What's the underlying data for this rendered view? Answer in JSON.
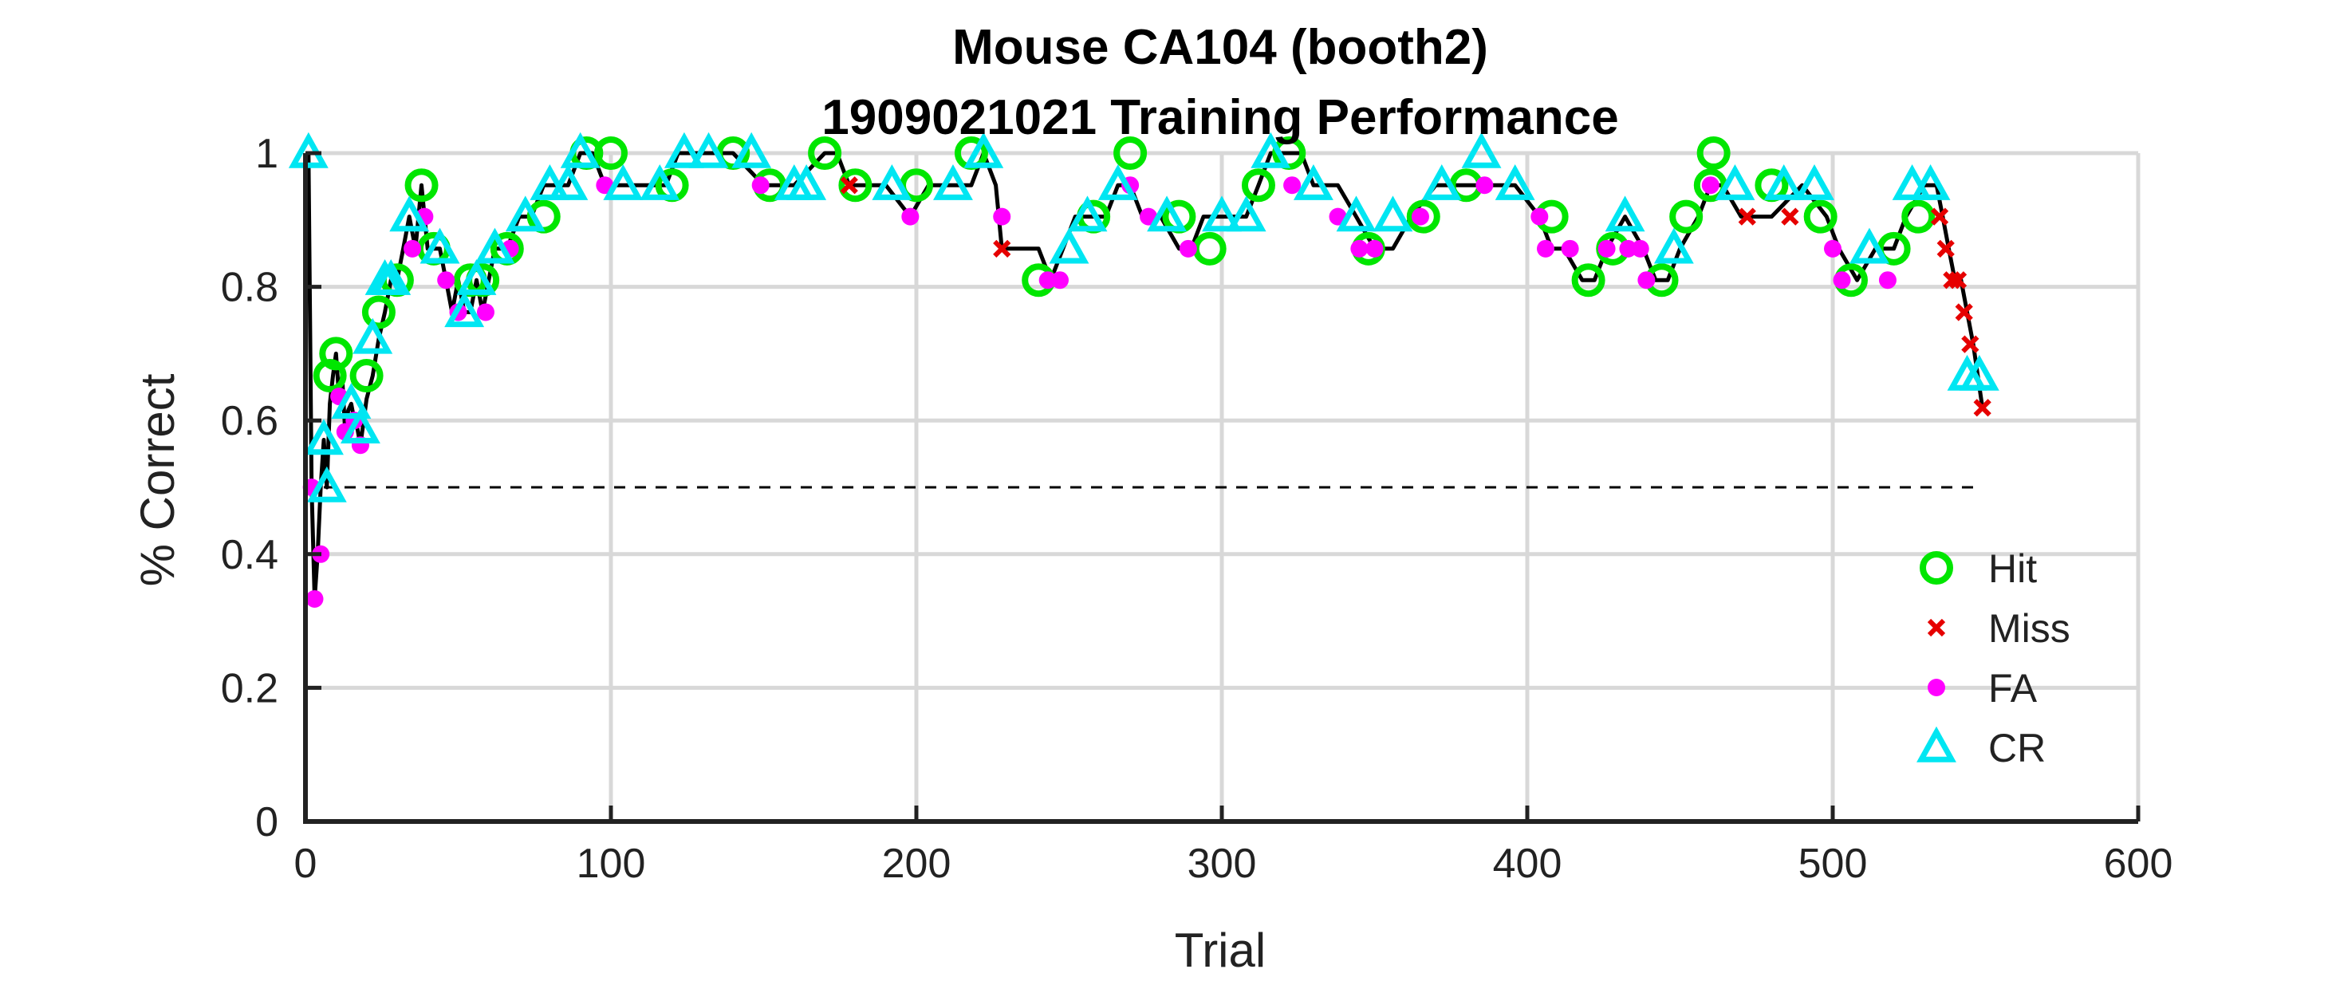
{
  "chart_data": {
    "type": "scatter",
    "title": "Mouse CA104 (booth2)",
    "subtitle": "1909021021 Training Performance",
    "xlabel": "Trial",
    "ylabel": "% Correct",
    "xlim": [
      0,
      600
    ],
    "ylim": [
      0,
      1
    ],
    "x_ticks": [
      "0",
      "100",
      "200",
      "300",
      "400",
      "500",
      "600"
    ],
    "y_ticks": [
      "0",
      "0.2",
      "0.4",
      "0.6",
      "0.8",
      "1"
    ],
    "grid": true,
    "legend_position": "bottom-right",
    "chance_level": 0.5,
    "colors": {
      "hit": "#00e600",
      "miss": "#e60000",
      "fa": "#ff00ff",
      "cr": "#00e6f2",
      "line": "#000000",
      "grid": "#d8d8d8"
    },
    "series": [
      {
        "name": "Hit",
        "marker": "circle-open",
        "x": [
          8,
          10,
          20,
          24,
          30,
          38,
          42,
          54,
          58,
          66,
          78,
          92,
          100,
          120,
          140,
          152,
          170,
          180,
          200,
          218,
          240,
          258,
          270,
          286,
          296,
          312,
          322,
          348,
          366,
          380,
          408,
          420,
          428,
          444,
          452,
          460,
          461,
          480,
          496,
          506,
          520,
          528
        ],
        "y": [
          0.667,
          0.7,
          0.667,
          0.762,
          0.81,
          0.952,
          0.857,
          0.81,
          0.81,
          0.857,
          0.905,
          1.0,
          1.0,
          0.952,
          1.0,
          0.952,
          1.0,
          0.952,
          0.952,
          1.0,
          0.81,
          0.905,
          1.0,
          0.905,
          0.857,
          0.952,
          1.0,
          0.857,
          0.905,
          0.952,
          0.905,
          0.81,
          0.857,
          0.81,
          0.905,
          0.952,
          1.0,
          0.952,
          0.905,
          0.81,
          0.857,
          0.905
        ]
      },
      {
        "name": "Miss",
        "marker": "x",
        "x": [
          178,
          228,
          472,
          486,
          535,
          537,
          539,
          541,
          543,
          545,
          549
        ],
        "y": [
          0.952,
          0.857,
          0.905,
          0.905,
          0.905,
          0.857,
          0.81,
          0.81,
          0.762,
          0.714,
          0.619
        ]
      },
      {
        "name": "FA",
        "marker": "dot",
        "x": [
          2,
          3,
          5,
          11,
          13,
          16,
          18,
          35,
          39,
          46,
          50,
          59,
          67,
          98,
          149,
          198,
          228,
          243,
          247,
          270,
          276,
          289,
          323,
          338,
          345,
          350,
          365,
          386,
          404,
          406,
          414,
          426,
          433,
          437,
          439,
          460,
          500,
          503,
          518
        ],
        "y": [
          0.5,
          0.333,
          0.4,
          0.636,
          0.583,
          0.6,
          0.563,
          0.857,
          0.905,
          0.81,
          0.762,
          0.762,
          0.857,
          0.952,
          0.952,
          0.905,
          0.905,
          0.81,
          0.81,
          0.952,
          0.905,
          0.857,
          0.952,
          0.905,
          0.857,
          0.857,
          0.905,
          0.952,
          0.905,
          0.857,
          0.857,
          0.857,
          0.857,
          0.857,
          0.81,
          0.952,
          0.857,
          0.81,
          0.81
        ]
      },
      {
        "name": "CR",
        "marker": "triangle-open",
        "x": [
          1,
          6,
          7,
          15,
          18,
          22,
          26,
          28,
          34,
          44,
          52,
          56,
          62,
          72,
          80,
          86,
          90,
          104,
          116,
          124,
          132,
          146,
          160,
          164,
          192,
          212,
          222,
          250,
          256,
          266,
          282,
          300,
          308,
          316,
          330,
          344,
          356,
          372,
          385,
          396,
          432,
          448,
          468,
          484,
          494,
          512,
          526,
          532,
          544,
          548
        ],
        "y": [
          1.0,
          0.571,
          0.5,
          0.625,
          0.588,
          0.722,
          0.81,
          0.81,
          0.905,
          0.857,
          0.762,
          0.81,
          0.857,
          0.905,
          0.952,
          0.952,
          1.0,
          0.952,
          0.952,
          1.0,
          1.0,
          1.0,
          0.952,
          0.952,
          0.952,
          0.952,
          1.0,
          0.857,
          0.905,
          0.952,
          0.905,
          0.905,
          0.905,
          1.0,
          0.952,
          0.905,
          0.905,
          0.952,
          1.0,
          0.952,
          0.905,
          0.857,
          0.952,
          0.952,
          0.952,
          0.857,
          0.952,
          0.952,
          0.667,
          0.667
        ]
      }
    ],
    "performance_curve": {
      "x": [
        0,
        1,
        2,
        3,
        4,
        5,
        6,
        7,
        8,
        9,
        10,
        11,
        12,
        13,
        14,
        15,
        16,
        17,
        18,
        20,
        22,
        24,
        26,
        28,
        30,
        32,
        34,
        36,
        38,
        40,
        42,
        44,
        46,
        48,
        50,
        52,
        54,
        56,
        58,
        60,
        62,
        66,
        70,
        74,
        78,
        82,
        86,
        90,
        94,
        98,
        102,
        110,
        118,
        122,
        140,
        150,
        160,
        170,
        174,
        178,
        190,
        198,
        204,
        218,
        222,
        226,
        228,
        232,
        240,
        244,
        248,
        252,
        258,
        262,
        266,
        270,
        274,
        280,
        286,
        290,
        294,
        300,
        308,
        312,
        316,
        320,
        326,
        330,
        338,
        344,
        350,
        356,
        362,
        370,
        376,
        384,
        390,
        396,
        404,
        408,
        412,
        418,
        422,
        426,
        432,
        438,
        442,
        446,
        450,
        456,
        460,
        464,
        470,
        480,
        490,
        498,
        502,
        508,
        514,
        520,
        524,
        530,
        534,
        536,
        538,
        540,
        542,
        544,
        546,
        549
      ],
      "y": [
        1.0,
        1.0,
        0.5,
        0.333,
        0.4,
        0.5,
        0.571,
        0.5,
        0.625,
        0.667,
        0.7,
        0.636,
        0.667,
        0.583,
        0.615,
        0.625,
        0.6,
        0.588,
        0.563,
        0.632,
        0.667,
        0.722,
        0.762,
        0.81,
        0.81,
        0.857,
        0.905,
        0.857,
        0.952,
        0.857,
        0.857,
        0.857,
        0.81,
        0.762,
        0.81,
        0.762,
        0.762,
        0.81,
        0.762,
        0.81,
        0.857,
        0.857,
        0.905,
        0.905,
        0.952,
        0.952,
        0.952,
        1.0,
        1.0,
        0.952,
        0.952,
        0.952,
        0.952,
        1.0,
        1.0,
        0.952,
        0.952,
        1.0,
        1.0,
        0.952,
        0.952,
        0.905,
        0.952,
        0.952,
        1.0,
        0.952,
        0.857,
        0.857,
        0.857,
        0.81,
        0.857,
        0.905,
        0.905,
        0.905,
        0.952,
        0.952,
        0.905,
        0.905,
        0.857,
        0.857,
        0.905,
        0.905,
        0.905,
        0.952,
        1.0,
        1.0,
        1.0,
        0.952,
        0.952,
        0.905,
        0.857,
        0.857,
        0.905,
        0.952,
        0.952,
        0.952,
        0.952,
        0.952,
        0.905,
        0.857,
        0.857,
        0.81,
        0.81,
        0.857,
        0.905,
        0.857,
        0.81,
        0.81,
        0.857,
        0.905,
        0.952,
        0.952,
        0.905,
        0.905,
        0.952,
        0.905,
        0.857,
        0.81,
        0.857,
        0.857,
        0.905,
        0.952,
        0.952,
        0.905,
        0.857,
        0.81,
        0.81,
        0.762,
        0.714,
        0.619
      ]
    }
  }
}
